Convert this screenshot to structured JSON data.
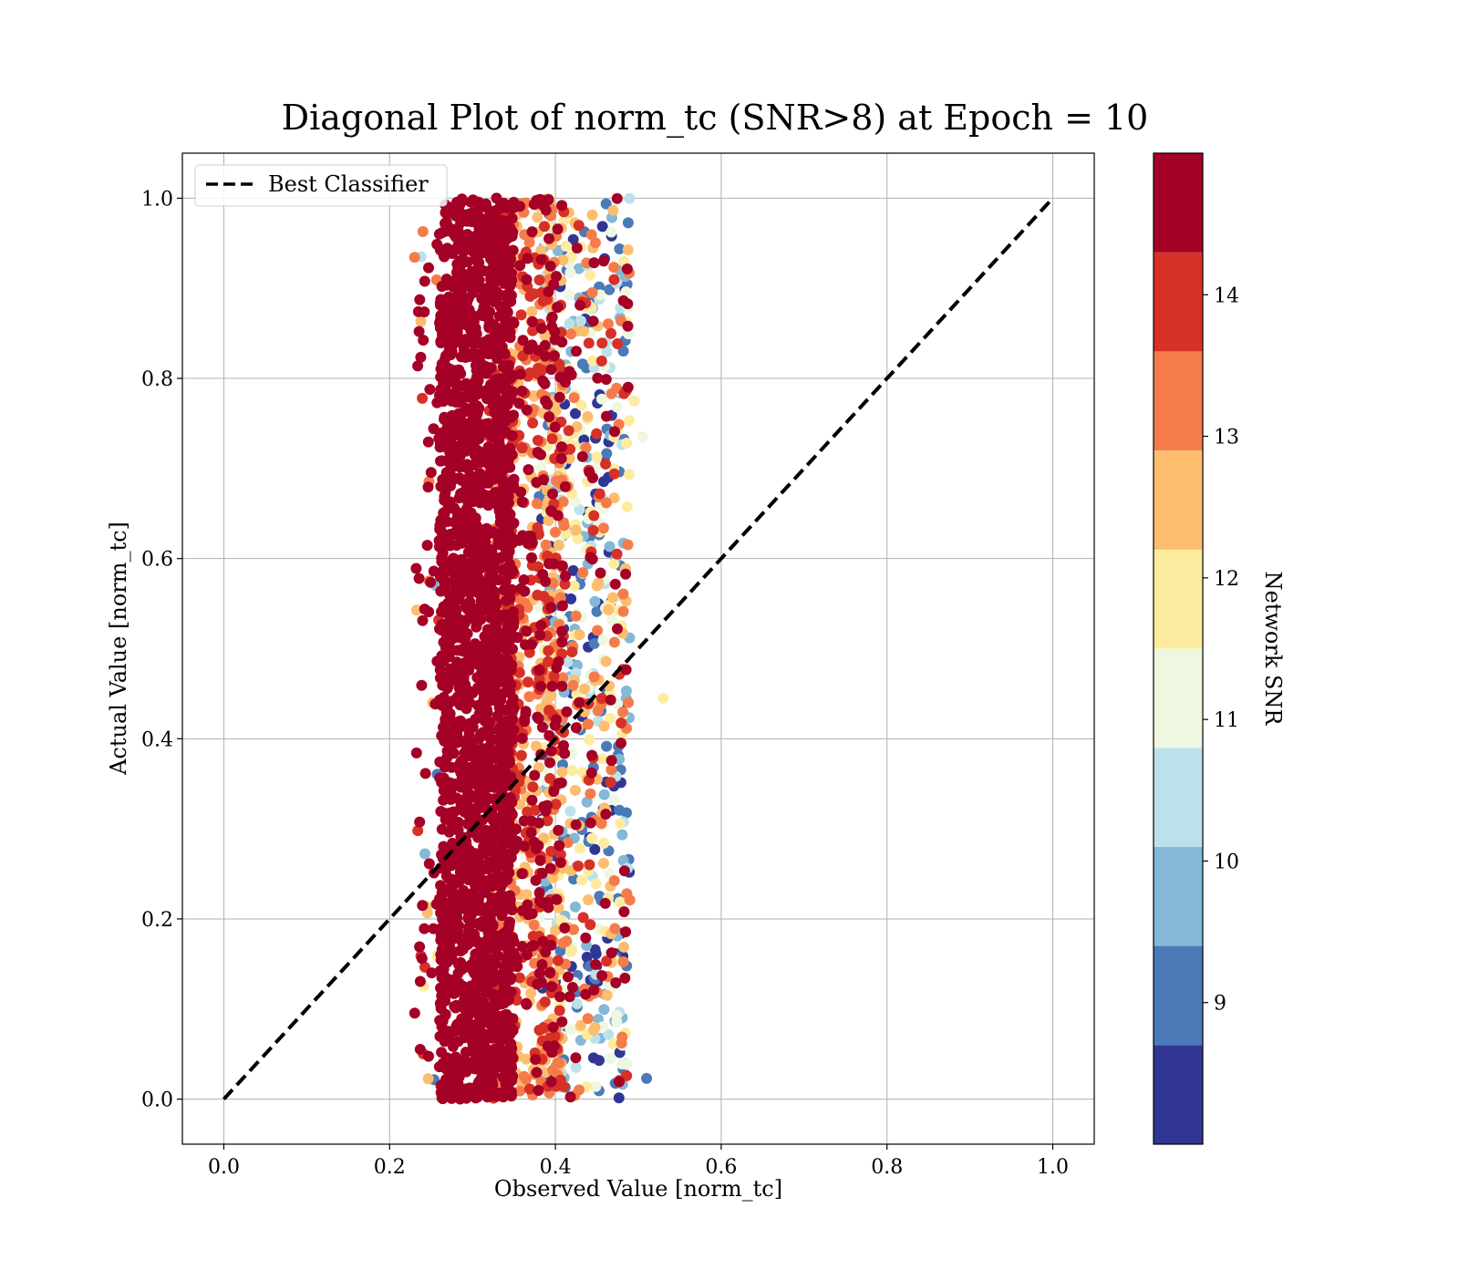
{
  "chart_data": {
    "type": "scatter",
    "title": "Diagonal Plot of norm_tc (SNR>8) at Epoch = 10",
    "xlabel": "Observed Value [norm_tc]",
    "ylabel": "Actual Value [norm_tc]",
    "xlim": [
      -0.05,
      1.05
    ],
    "ylim": [
      -0.05,
      1.05
    ],
    "xticks": [
      "0.0",
      "0.2",
      "0.4",
      "0.6",
      "0.8",
      "1.0"
    ],
    "yticks": [
      "0.0",
      "0.2",
      "0.4",
      "0.6",
      "0.8",
      "1.0"
    ],
    "grid": true,
    "legend": {
      "placement": "top-left",
      "entries": [
        {
          "label": "Best Classifier",
          "style": "dashed",
          "color": "#000000"
        }
      ]
    },
    "reference_line": {
      "name": "Best Classifier",
      "x": [
        0.0,
        1.0
      ],
      "y": [
        0.0,
        1.0
      ],
      "style": "dashed",
      "color": "#000000"
    },
    "scatter": {
      "description_of_distribution": {
        "x_range": [
          0.23,
          0.51
        ],
        "y_range": [
          0.0,
          1.0
        ],
        "dense_core_x": [
          0.26,
          0.34
        ],
        "high_snr_concentrated_at_low_x": true
      },
      "marker_colored_by": "Network SNR"
    },
    "colorbar": {
      "label": "Network SNR",
      "range": [
        8.0,
        15.0
      ],
      "tick_values": [
        9,
        10,
        11,
        12,
        13,
        14
      ],
      "tick_labels": [
        "9",
        "10",
        "11",
        "12",
        "13",
        "14"
      ],
      "bins": [
        {
          "from": 8.0,
          "to": 8.7,
          "color": "#313695"
        },
        {
          "from": 8.7,
          "to": 9.4,
          "color": "#4a7ab7"
        },
        {
          "from": 9.4,
          "to": 10.1,
          "color": "#83b8d7"
        },
        {
          "from": 10.1,
          "to": 10.8,
          "color": "#bde1ea"
        },
        {
          "from": 10.8,
          "to": 11.5,
          "color": "#eef7e0"
        },
        {
          "from": 11.5,
          "to": 12.2,
          "color": "#fdeca0"
        },
        {
          "from": 12.2,
          "to": 12.9,
          "color": "#fcbd6f"
        },
        {
          "from": 12.9,
          "to": 13.6,
          "color": "#f57c4a"
        },
        {
          "from": 13.6,
          "to": 14.3,
          "color": "#d73027"
        },
        {
          "from": 14.3,
          "to": 15.0,
          "color": "#a50026"
        }
      ]
    }
  }
}
